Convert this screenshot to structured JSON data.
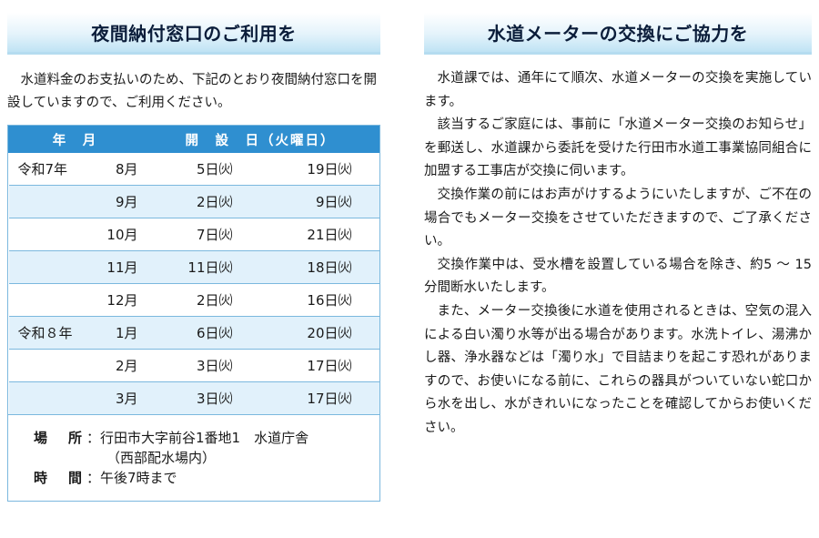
{
  "left": {
    "title": "夜間納付窓口のご利用を",
    "intro": "水道料金のお支払いのため、下記のとおり夜間納付窓口を開設していますので、ご利用ください。",
    "table": {
      "headers": [
        "年　月",
        "開　設　日（火曜日）"
      ],
      "rows": [
        {
          "era": "令和7年",
          "month": "8月",
          "day1": "5日㈫",
          "day2": "19日㈫"
        },
        {
          "era": "",
          "month": "9月",
          "day1": "2日㈫",
          "day2": "9日㈫"
        },
        {
          "era": "",
          "month": "10月",
          "day1": "7日㈫",
          "day2": "21日㈫"
        },
        {
          "era": "",
          "month": "11月",
          "day1": "11日㈫",
          "day2": "18日㈫"
        },
        {
          "era": "",
          "month": "12月",
          "day1": "2日㈫",
          "day2": "16日㈫"
        },
        {
          "era": "令和８年",
          "month": "1月",
          "day1": "6日㈫",
          "day2": "20日㈫"
        },
        {
          "era": "",
          "month": "2月",
          "day1": "3日㈫",
          "day2": "17日㈫"
        },
        {
          "era": "",
          "month": "3月",
          "day1": "3日㈫",
          "day2": "17日㈫"
        }
      ]
    },
    "info": {
      "place_label": "場　所",
      "place_value": "：行田市大字前谷1番地1　水道庁舎",
      "place_sub": "（西部配水場内）",
      "time_label": "時　間",
      "time_value": "：午後7時まで"
    }
  },
  "right": {
    "title": "水道メーターの交換にご協力を",
    "paragraphs": [
      "水道課では、通年にて順次、水道メーターの交換を実施しています。",
      "該当するご家庭には、事前に「水道メーター交換のお知らせ」を郵送し、水道課から委託を受けた行田市水道工事業協同組合に加盟する工事店が交換に伺います。",
      "交換作業の前にはお声がけするようにいたしますが、ご不在の場合でもメーター交換をさせていただきますので、ご了承ください。",
      "交換作業中は、受水槽を設置している場合を除き、約5 ～ 15分間断水いたします。",
      "また、メーター交換後に水道を使用されるときは、空気の混入による白い濁り水等が出る場合があります。水洗トイレ、湯沸かし器、浄水器などは「濁り水」で目詰まりを起こす恐れがありますので、お使いになる前に、これらの器具がついていない蛇口から水を出し、水がきれいになったことを確認してからお使いください。"
    ]
  },
  "colors": {
    "banner_text": "#0b1d3a",
    "table_header": "#2f8fd0",
    "row_alt": "#e1f1fb",
    "border": "#7bb8de"
  }
}
